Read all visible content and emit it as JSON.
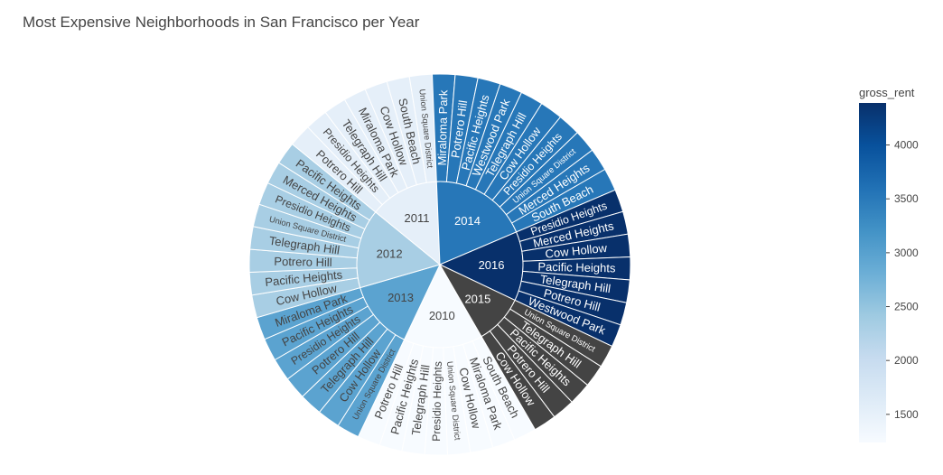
{
  "chart_data": {
    "type": "sunburst",
    "title": "Most Expensive Neighborhoods in San Francisco per Year",
    "colorbar": {
      "title": "gross_rent",
      "range": [
        1239,
        4390
      ],
      "ticks": [
        1500,
        2000,
        2500,
        3000,
        3500,
        4000
      ],
      "colorscale": [
        "#f7fbff",
        "#deebf7",
        "#c6dbef",
        "#9ecae1",
        "#6baed6",
        "#4292c6",
        "#2171b5",
        "#08519c",
        "#08306b"
      ]
    },
    "years": [
      {
        "label": "2010",
        "gross_rent": 1239,
        "children": [
          {
            "label": "South Beach",
            "value": 1
          },
          {
            "label": "Miraloma Park",
            "value": 1
          },
          {
            "label": "Cow Hollow",
            "value": 1
          },
          {
            "label": "Union Square District",
            "value": 1
          },
          {
            "label": "Presidio Heights",
            "value": 1
          },
          {
            "label": "Telegraph Hill",
            "value": 1
          },
          {
            "label": "Pacific Heights",
            "value": 1
          },
          {
            "label": "Potrero Hill",
            "value": 1
          }
        ]
      },
      {
        "label": "2013",
        "gross_rent": 2971,
        "children": [
          {
            "label": "Union Square District",
            "value": 1
          },
          {
            "label": "Cow Hollow",
            "value": 1
          },
          {
            "label": "Telegraph Hill",
            "value": 1
          },
          {
            "label": "Potrero Hill",
            "value": 1
          },
          {
            "label": "Presidio Heights",
            "value": 1
          },
          {
            "label": "Pacific Heights",
            "value": 1
          },
          {
            "label": "Miraloma Park",
            "value": 1
          }
        ]
      },
      {
        "label": "2012",
        "gross_rent": 2324,
        "children": [
          {
            "label": "Cow Hollow",
            "value": 1
          },
          {
            "label": "Pacific Heights",
            "value": 1
          },
          {
            "label": "Potrero Hill",
            "value": 1
          },
          {
            "label": "Telegraph Hill",
            "value": 1
          },
          {
            "label": "Union Square District",
            "value": 1
          },
          {
            "label": "Presidio Heights",
            "value": 1
          },
          {
            "label": "Merced Heights",
            "value": 1
          },
          {
            "label": "Pacific Heights",
            "value": 1
          }
        ]
      },
      {
        "label": "2011",
        "gross_rent": 1530,
        "children": [
          {
            "label": "Potrero Hill",
            "value": 1
          },
          {
            "label": "Presidio Heights",
            "value": 1
          },
          {
            "label": "Telegraph Hill",
            "value": 1
          },
          {
            "label": "Miraloma Park",
            "value": 1
          },
          {
            "label": "Cow Hollow",
            "value": 1
          },
          {
            "label": "South Beach",
            "value": 1
          },
          {
            "label": "Union Square District",
            "value": 1
          }
        ]
      },
      {
        "label": "2014",
        "gross_rent": 3528,
        "children": [
          {
            "label": "Miraloma Park",
            "value": 1
          },
          {
            "label": "Potrero Hill",
            "value": 1
          },
          {
            "label": "Pacific Heights",
            "value": 1
          },
          {
            "label": "Westwood Park",
            "value": 1
          },
          {
            "label": "Telegraph Hill",
            "value": 1
          },
          {
            "label": "Cow Hollow",
            "value": 1
          },
          {
            "label": "Presidio Heights",
            "value": 1
          },
          {
            "label": "Union Square District",
            "value": 1
          },
          {
            "label": "Merced Heights",
            "value": 1
          },
          {
            "label": "South Beach",
            "value": 1
          }
        ]
      },
      {
        "label": "2016",
        "gross_rent": 4390,
        "children": [
          {
            "label": "Presidio Heights",
            "value": 1
          },
          {
            "label": "Merced Heights",
            "value": 1
          },
          {
            "label": "Cow Hollow",
            "value": 1
          },
          {
            "label": "Pacific Heights",
            "value": 1
          },
          {
            "label": "Telegraph Hill",
            "value": 1
          },
          {
            "label": "Potrero Hill",
            "value": 1
          },
          {
            "label": "Westwood Park",
            "value": 1
          }
        ]
      },
      {
        "label": "2015",
        "gross_rent": null,
        "children": [
          {
            "label": "Union Square District",
            "value": 1
          },
          {
            "label": "Telegraph Hill",
            "value": 1
          },
          {
            "label": "Pacific Heights",
            "value": 1
          },
          {
            "label": "Potrero Hill",
            "value": 1
          },
          {
            "label": "Cow Hollow",
            "value": 1
          }
        ]
      }
    ]
  }
}
